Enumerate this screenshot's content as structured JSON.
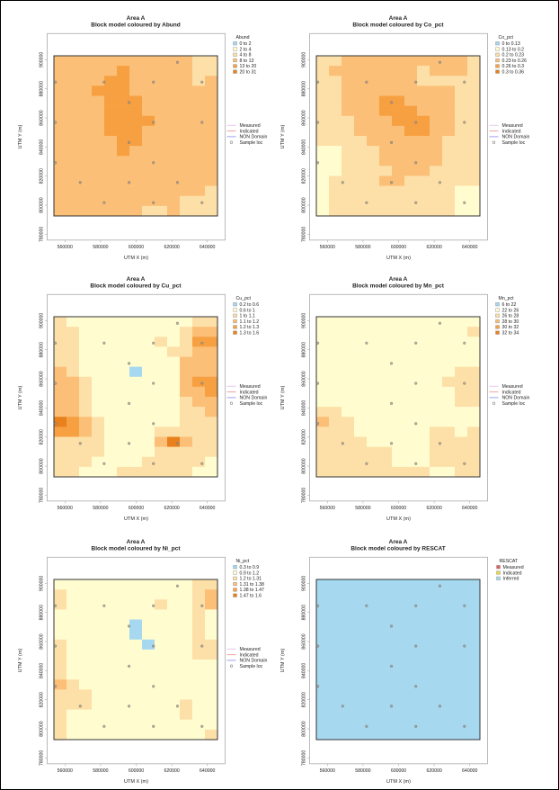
{
  "chart_data": [
    {
      "type": "heatmap",
      "title_line1": "Area A",
      "title_line2": "Block model coloured by Abund",
      "xlabel": "UTM X (m)",
      "ylabel": "UTM Y (m)",
      "xlim": [
        550000,
        650000
      ],
      "ylim": [
        776000,
        918000
      ],
      "xticks": [
        560000,
        580000,
        600000,
        620000,
        640000
      ],
      "yticks": [
        780000,
        800000,
        820000,
        840000,
        860000,
        880000,
        900000
      ],
      "block_extent_x": [
        553800,
        645700
      ],
      "block_extent_y": [
        792600,
        902700
      ],
      "legend_title": "Abund",
      "classes": [
        {
          "label": "0 to 2",
          "color": "#a6d8f0"
        },
        {
          "label": "2 to 4",
          "color": "#fffdd0"
        },
        {
          "label": "4 to 8",
          "color": "#fde0a8"
        },
        {
          "label": "8 to 13",
          "color": "#fbbf78"
        },
        {
          "label": "13 to 20",
          "color": "#f7a042"
        },
        {
          "label": "20 to 31",
          "color": "#e8801c"
        }
      ],
      "grid": [
        "3333333333322",
        "3333343333322",
        "3333443333323",
        "3334443333333",
        "3333444333333",
        "3333444333333",
        "3333444433333",
        "3333444333333",
        "3333344333333",
        "3333343333333",
        "3333333333333",
        "3333333333333",
        "3333333333333",
        "3333333333332",
        "3333333333222",
        "3333333223222"
      ],
      "show_domain_legend": true
    },
    {
      "type": "heatmap",
      "title_line1": "Area A",
      "title_line2": "Block model coloured by Co_pct",
      "xlabel": "UTM X (m)",
      "ylabel": "UTM Y (m)",
      "xlim": [
        550000,
        650000
      ],
      "ylim": [
        776000,
        918000
      ],
      "xticks": [
        560000,
        580000,
        600000,
        620000,
        640000
      ],
      "yticks": [
        780000,
        800000,
        820000,
        840000,
        860000,
        880000,
        900000
      ],
      "block_extent_x": [
        553800,
        645700
      ],
      "block_extent_y": [
        792600,
        902700
      ],
      "legend_title": "Co_pct",
      "classes": [
        {
          "label": "0 to 0.13",
          "color": "#a6d8f0"
        },
        {
          "label": "0.13 to 0.2",
          "color": "#fffdd0"
        },
        {
          "label": "0.2 to 0.23",
          "color": "#fde0a8"
        },
        {
          "label": "0.23 to 0.26",
          "color": "#fbbf78"
        },
        {
          "label": "0.26 to 0.3",
          "color": "#f7a042"
        },
        {
          "label": "0.3 to 0.36",
          "color": "#e8801c"
        }
      ],
      "grid": [
        "2233333333332",
        "2333333323332",
        "2233333322222",
        "2233333333322",
        "2233344333322",
        "2233344433322",
        "2223334443322",
        "2223333443322",
        "2222333333222",
        "1122233333222",
        "1122233333222",
        "1122223332222",
        "1222233222222",
        "1222222222211",
        "1222222222211",
        "1222222222211"
      ],
      "show_domain_legend": true
    },
    {
      "type": "heatmap",
      "title_line1": "Area A",
      "title_line2": "Block model coloured by Cu_pct",
      "xlabel": "UTM X (m)",
      "ylabel": "UTM Y (m)",
      "xlim": [
        550000,
        650000
      ],
      "ylim": [
        776000,
        918000
      ],
      "xticks": [
        560000,
        580000,
        600000,
        620000,
        640000
      ],
      "yticks": [
        780000,
        800000,
        820000,
        840000,
        860000,
        880000,
        900000
      ],
      "block_extent_x": [
        553800,
        645700
      ],
      "block_extent_y": [
        792600,
        902700
      ],
      "legend_title": "Cu_pct",
      "classes": [
        {
          "label": "0.2 to 0.6",
          "color": "#a6d8f0"
        },
        {
          "label": "0.6 to 1",
          "color": "#fffdd0"
        },
        {
          "label": "1 to 1.1",
          "color": "#fde0a8"
        },
        {
          "label": "1.1 to 1.2",
          "color": "#fbbf78"
        },
        {
          "label": "1.2 to 1.3",
          "color": "#f7a042"
        },
        {
          "label": "1.3 to 1.6",
          "color": "#e8801c"
        }
      ],
      "grid": [
        "2111111111122",
        "2211111111233",
        "2211111121244",
        "2211111112233",
        "2211111111333",
        "3211110111333",
        "3321111111344",
        "3321111111334",
        "3321111111233",
        "3321111111223",
        "5432111111222",
        "4432111122222",
        "2222111135322",
        "2222111122222",
        "2221111222221",
        "2211122222211"
      ],
      "show_domain_legend": true
    },
    {
      "type": "heatmap",
      "title_line1": "Area A",
      "title_line2": "Block model coloured by Mn_pct",
      "xlabel": "UTM X (m)",
      "ylabel": "UTM Y (m)",
      "xlim": [
        550000,
        650000
      ],
      "ylim": [
        776000,
        918000
      ],
      "xticks": [
        560000,
        580000,
        600000,
        620000,
        640000
      ],
      "yticks": [
        780000,
        800000,
        820000,
        840000,
        860000,
        880000,
        900000
      ],
      "block_extent_x": [
        553800,
        645700
      ],
      "block_extent_y": [
        792600,
        902700
      ],
      "legend_title": "Mn_pct",
      "classes": [
        {
          "label": "6 to 22",
          "color": "#a6d8f0"
        },
        {
          "label": "22 to 26",
          "color": "#fffdd0"
        },
        {
          "label": "26 to 28",
          "color": "#fde0a8"
        },
        {
          "label": "28 to 30",
          "color": "#fbbf78"
        },
        {
          "label": "30 to 32",
          "color": "#f7a042"
        },
        {
          "label": "32 to 34",
          "color": "#e8801c"
        }
      ],
      "grid": [
        "1111111111111",
        "1111111111112",
        "1111111111111",
        "1111111111111",
        "1111111111111",
        "1111111111122",
        "1111111111222",
        "1111111111122",
        "1111111111122",
        "2211111111111",
        "3221111111111",
        "2221111112212",
        "2222111112222",
        "2222221112222",
        "2222221112222",
        "2222222221122"
      ],
      "show_domain_legend": true
    },
    {
      "type": "heatmap",
      "title_line1": "Area A",
      "title_line2": "Block model coloured by Ni_pct",
      "xlabel": "UTM X (m)",
      "ylabel": "UTM Y (m)",
      "xlim": [
        550000,
        650000
      ],
      "ylim": [
        776000,
        918000
      ],
      "xticks": [
        560000,
        580000,
        600000,
        620000,
        640000
      ],
      "yticks": [
        780000,
        800000,
        820000,
        840000,
        860000,
        880000,
        900000
      ],
      "block_extent_x": [
        553800,
        645700
      ],
      "block_extent_y": [
        792600,
        902700
      ],
      "legend_title": "Ni_pct",
      "classes": [
        {
          "label": "0.3 to 0.9",
          "color": "#a6d8f0"
        },
        {
          "label": "0.9 to 1.2",
          "color": "#fffdd0"
        },
        {
          "label": "1.2 to 1.31",
          "color": "#fde0a8"
        },
        {
          "label": "1.31 to 1.38",
          "color": "#fbbf78"
        },
        {
          "label": "1.38 to 1.47",
          "color": "#f7a042"
        },
        {
          "label": "1.47 to 1.6",
          "color": "#e8801c"
        }
      ],
      "grid": [
        "1111111111122",
        "2111111111123",
        "2111111121123",
        "1111111111121",
        "1111110111121",
        "1111110111121",
        "2111111011122",
        "2111111111122",
        "2111111111111",
        "2111111111111",
        "3211111111111",
        "2221111111111",
        "2221111111211",
        "2111111111211",
        "2111111111111",
        "2111111111112"
      ],
      "show_domain_legend": true
    },
    {
      "type": "heatmap",
      "title_line1": "Area A",
      "title_line2": "Block model coloured by RESCAT",
      "xlabel": "UTM X (m)",
      "ylabel": "UTM Y (m)",
      "xlim": [
        550000,
        650000
      ],
      "ylim": [
        776000,
        918000
      ],
      "xticks": [
        560000,
        580000,
        600000,
        620000,
        640000
      ],
      "yticks": [
        780000,
        800000,
        820000,
        840000,
        860000,
        880000,
        900000
      ],
      "block_extent_x": [
        553800,
        645700
      ],
      "block_extent_y": [
        792600,
        902700
      ],
      "legend_title": "RESCAT",
      "classes": [
        {
          "label": "Measured",
          "color": "#e06060"
        },
        {
          "label": "Indicated",
          "color": "#e6d84a"
        },
        {
          "label": "Inferred",
          "color": "#a6d8f0"
        }
      ],
      "grid": [
        "2222222222222",
        "2222222222222",
        "2222222222222",
        "2222222222222",
        "2222222222222",
        "2222222222222",
        "2222222222222",
        "2222222222222",
        "2222222222222",
        "2222222222222",
        "2222222222222",
        "2222222222222",
        "2222222222222",
        "2222222222222",
        "2222222222222",
        "2222222222222"
      ],
      "show_domain_legend": false
    }
  ],
  "domain_legend": [
    {
      "label": "Measured",
      "kind": "line",
      "color": "#e8c8f0"
    },
    {
      "label": "Indicated",
      "kind": "line",
      "color": "#f0a0a0"
    },
    {
      "label": "NON Domain",
      "kind": "line",
      "color": "#a0a0f0"
    },
    {
      "label": "Sample loc",
      "kind": "point",
      "color": "#888888"
    }
  ],
  "sample_locations": [
    [
      623200,
      898200
    ],
    [
      554600,
      884600
    ],
    [
      582000,
      884600
    ],
    [
      609700,
      884600
    ],
    [
      637000,
      884600
    ],
    [
      596000,
      870600
    ],
    [
      554600,
      856900
    ],
    [
      609700,
      856900
    ],
    [
      637000,
      856900
    ],
    [
      596000,
      843100
    ],
    [
      554600,
      829200
    ],
    [
      609700,
      829200
    ],
    [
      568600,
      815600
    ],
    [
      596000,
      815600
    ],
    [
      623200,
      815600
    ],
    [
      582000,
      801700
    ],
    [
      609700,
      801700
    ],
    [
      637000,
      801700
    ]
  ]
}
